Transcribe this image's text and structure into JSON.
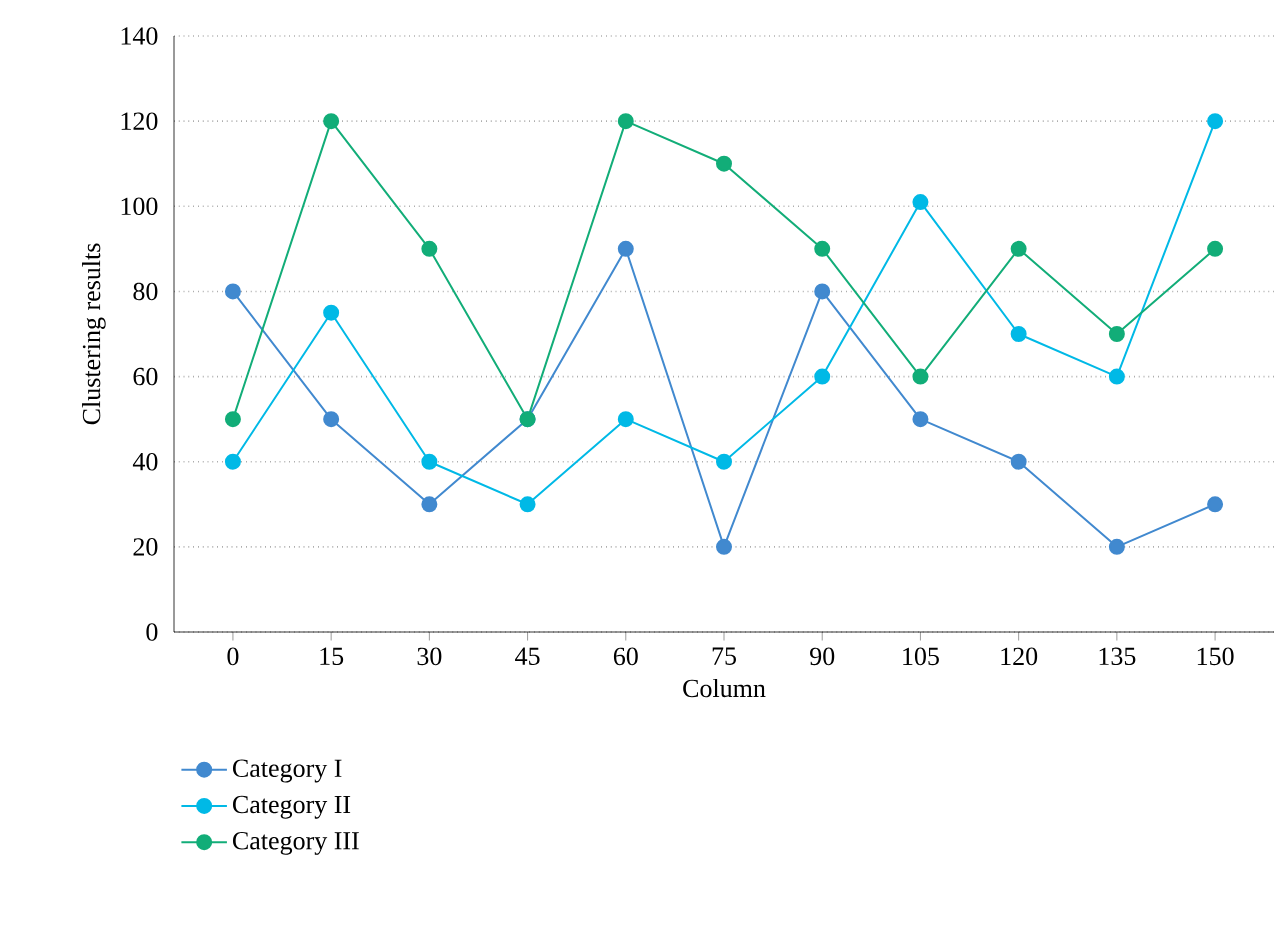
{
  "chart_data": {
    "type": "line",
    "xlabel": "Column",
    "ylabel": "Clustering results",
    "categories": [
      "0",
      "15",
      "30",
      "45",
      "60",
      "75",
      "90",
      "105",
      "120",
      "135",
      "150"
    ],
    "series": [
      {
        "name": "Category I",
        "color": "#4189cf",
        "values": [
          80,
          50,
          30,
          50,
          90,
          20,
          80,
          50,
          40,
          20,
          30
        ]
      },
      {
        "name": "Category II",
        "color": "#00b9e6",
        "values": [
          40,
          75,
          40,
          30,
          50,
          40,
          60,
          101,
          70,
          60,
          120
        ]
      },
      {
        "name": "Category III",
        "color": "#12ad78",
        "values": [
          50,
          120,
          90,
          50,
          120,
          110,
          90,
          60,
          90,
          70,
          90
        ]
      }
    ],
    "ylim": [
      0,
      140
    ],
    "yticks": [
      0,
      20,
      40,
      60,
      80,
      100,
      120,
      140
    ],
    "grid": "y",
    "legend": "bottom",
    "marker": "circle",
    "line_style": "solid"
  }
}
